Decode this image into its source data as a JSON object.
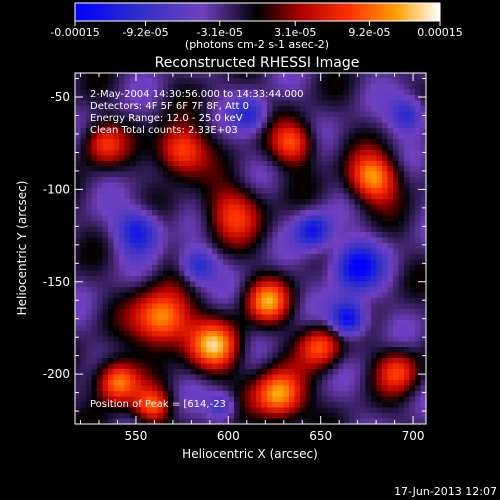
{
  "chart_data": {
    "type": "heatmap",
    "title": "Reconstructed RHESSI Image",
    "xlabel": "Heliocentric X (arcsec)",
    "ylabel": "Heliocentric Y (arcsec)",
    "xlim": [
      517,
      707
    ],
    "ylim": [
      -227,
      -37
    ],
    "x_ticks": [
      "550",
      "600",
      "650",
      "700"
    ],
    "x_tick_values": [
      550,
      600,
      650,
      700
    ],
    "y_ticks": [
      "-50",
      "-100",
      "-150",
      "-200"
    ],
    "y_tick_values": [
      -50,
      -100,
      -150,
      -200
    ],
    "colorbar": {
      "labels": [
        "-0.00015",
        "-9.2e-05",
        "-3.1e-05",
        "3.1e-05",
        "9.2e-05",
        "0.00015"
      ],
      "label_values": [
        -0.00015,
        -9.2e-05,
        -3.1e-05,
        3.1e-05,
        9.2e-05,
        0.00015
      ],
      "range": [
        -0.00015,
        0.00015
      ],
      "units": "(photons cm-2 s-1 asec-2)",
      "colors": [
        "#0000ff",
        "#3a3ab0",
        "#7040c0",
        "#000000",
        "#b00000",
        "#ff3000",
        "#ffa000",
        "#ffffff"
      ]
    },
    "annotations": [
      "2-May-2004 14:30:56.000 to 14:33:44.000",
      "Detectors: 4F 5F 6F 7F 8F, Att 0",
      "Energy Range: 12.0 - 25.0 keV",
      "Clean     Total counts: 2.33E+03",
      "Position of Peak = [614,-23"
    ],
    "peak_position": [
      614,
      -23
    ]
  },
  "footer": {
    "timestamp": "17-Jun-2013 12:07"
  }
}
